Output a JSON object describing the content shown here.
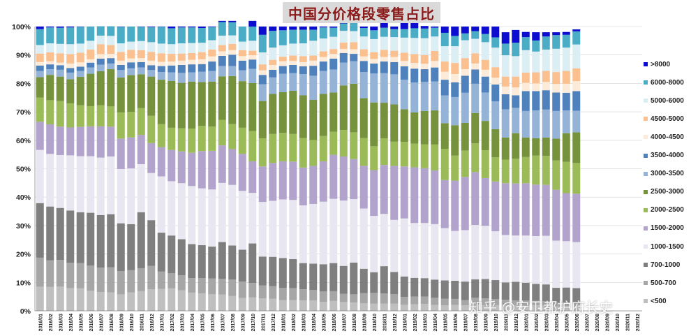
{
  "chart_data": {
    "type": "bar",
    "stacked": true,
    "percent": true,
    "title": "中国分价格段零售占比",
    "ylim": [
      0,
      100
    ],
    "yticks": [
      "0%",
      "10%",
      "20%",
      "30%",
      "40%",
      "50%",
      "60%",
      "70%",
      "80%",
      "90%",
      "100%"
    ],
    "categories": [
      "2016/01",
      "2016/02",
      "2016/03",
      "2016/04",
      "2016/05",
      "2016/06",
      "2016/07",
      "2016/08",
      "2016/09",
      "2016/10",
      "2016/11",
      "2016/12",
      "2017/01",
      "2017/02",
      "2017/03",
      "2017/04",
      "2017/05",
      "2017/06",
      "2017/07",
      "2017/08",
      "2017/09",
      "2017/10",
      "2017/11",
      "2017/12",
      "2018/01",
      "2018/02",
      "2018/03",
      "2018/04",
      "2018/05",
      "2018/06",
      "2018/07",
      "2018/08",
      "2018/09",
      "2018/10",
      "2018/11",
      "2018/12",
      "2019/01",
      "2019/02",
      "2019/03",
      "2019/04",
      "2019/05",
      "2019/06",
      "2019/07",
      "2019/08",
      "2019/09",
      "2019/10",
      "2019/11",
      "2019/12",
      "2020/01",
      "2020/02",
      "2020/03",
      "2020/04",
      "2020/05",
      "2020/06",
      "2020/07",
      "2020/08",
      "2020/09",
      "2020/10",
      "2020/11",
      "2020/12"
    ],
    "legend_position": "right",
    "series": [
      {
        "name": "<500",
        "color": "#bfbfbf",
        "values": [
          8.5,
          8.4,
          8.6,
          8.0,
          7.9,
          7.1,
          6.6,
          6.5,
          5.8,
          6.5,
          7.0,
          7.6,
          7.7,
          7.9,
          7.2,
          6.4,
          6.1,
          5.9,
          5.7,
          5.2,
          4.5,
          4.7,
          4.4,
          4.3,
          3.8,
          3.8,
          3.7,
          3.7,
          3.2,
          3.5,
          3.1,
          2.9,
          2.7,
          2.5,
          2.5,
          2.5,
          2.2,
          2.3,
          2.4,
          2.1,
          1.9,
          2.1,
          1.9,
          2.2,
          2.0,
          2.0,
          2.1,
          1.9,
          1.9,
          1.9,
          1.8,
          1.6,
          1.6,
          1.5,
          null,
          null,
          null,
          null,
          null,
          null
        ]
      },
      {
        "name": "500-700",
        "color": "#a6a6a6",
        "values": [
          10.2,
          9.4,
          9.3,
          8.9,
          8.9,
          8.8,
          8.6,
          8.8,
          8.2,
          7.8,
          8.0,
          8.2,
          6.1,
          5.3,
          5.3,
          5.1,
          5.4,
          5.5,
          5.6,
          5.8,
          5.8,
          5.1,
          4.5,
          4.4,
          4.3,
          4.2,
          3.9,
          3.6,
          3.6,
          3.4,
          2.9,
          2.9,
          3.5,
          3.8,
          3.6,
          3.4,
          2.7,
          2.7,
          2.6,
          2.5,
          2.4,
          2.1,
          1.9,
          2.4,
          2.4,
          2.1,
          1.8,
          1.8,
          1.7,
          1.6,
          1.6,
          1.3,
          1.3,
          1.3,
          null,
          null,
          null,
          null,
          null,
          null
        ]
      },
      {
        "name": "700-1000",
        "color": "#7f7f7f",
        "values": [
          19.2,
          18.9,
          18.3,
          18.4,
          17.9,
          18.6,
          18.5,
          18.7,
          16.8,
          16.2,
          19.7,
          16.1,
          13.7,
          13.3,
          12.7,
          12.0,
          11.6,
          11.2,
          12.9,
          12.0,
          11.2,
          13.9,
          10.2,
          10.3,
          10.5,
          10.2,
          9.2,
          9.3,
          9.6,
          9.9,
          9.8,
          11.2,
          8.6,
          7.3,
          9.6,
          7.8,
          7.2,
          6.6,
          6.5,
          6.4,
          6.4,
          6.4,
          6.5,
          6.5,
          6.8,
          6.7,
          6.1,
          6.5,
          6.3,
          6.0,
          5.9,
          5.2,
          5.3,
          5.2,
          null,
          null,
          null,
          null,
          null,
          null
        ]
      },
      {
        "name": "1000-1500",
        "color": "#e8e6f0",
        "values": [
          18.7,
          18.5,
          18.6,
          19.4,
          19.7,
          19.9,
          20.2,
          20.3,
          19.1,
          19.6,
          16.9,
          16.6,
          19.8,
          19.1,
          19.7,
          20.4,
          20.0,
          20.1,
          20.8,
          21.3,
          20.7,
          17.8,
          19.2,
          19.7,
          20.6,
          20.8,
          20.3,
          21.0,
          22.0,
          22.6,
          23.0,
          22.3,
          21.2,
          19.8,
          18.4,
          18.3,
          20.4,
          19.3,
          19.4,
          19.5,
          18.4,
          17.5,
          18.1,
          19.1,
          18.7,
          17.2,
          16.7,
          16.3,
          16.6,
          16.8,
          17.1,
          16.6,
          16.3,
          16.2,
          null,
          null,
          null,
          null,
          null,
          null
        ]
      },
      {
        "name": "1500-2000",
        "color": "#b2a3cc",
        "values": [
          9.9,
          10.4,
          10.0,
          9.8,
          10.3,
          10.5,
          11.0,
          10.5,
          10.7,
          10.9,
          10.3,
          10.5,
          10.3,
          11.0,
          11.2,
          11.7,
          13.1,
          13.6,
          13.2,
          12.6,
          13.0,
          11.1,
          12.5,
          13.3,
          13.4,
          13.5,
          13.3,
          13.4,
          14.2,
          15.5,
          15.5,
          14.1,
          15.0,
          16.1,
          17.2,
          19.0,
          18.3,
          19.6,
          19.3,
          18.9,
          16.9,
          17.7,
          18.7,
          18.6,
          16.8,
          17.5,
          18.2,
          18.3,
          18.4,
          18.1,
          17.9,
          17.9,
          16.9,
          17.0,
          null,
          null,
          null,
          null,
          null,
          null
        ]
      },
      {
        "name": "2000-2500",
        "color": "#9bbb59",
        "values": [
          8.5,
          8.5,
          9.0,
          8.5,
          7.6,
          7.1,
          7.4,
          7.1,
          9.2,
          9.0,
          9.4,
          9.6,
          8.1,
          7.8,
          8.1,
          8.5,
          8.9,
          8.5,
          9.0,
          8.8,
          9.2,
          10.6,
          9.9,
          10.2,
          10.0,
          9.7,
          10.4,
          9.1,
          8.9,
          8.1,
          9.3,
          9.4,
          9.8,
          8.4,
          9.4,
          8.5,
          8.6,
          8.3,
          8.4,
          9.1,
          11.0,
          8.8,
          9.3,
          10.1,
          9.8,
          8.5,
          8.3,
          8.7,
          9.2,
          10.2,
          10.2,
          10.3,
          11.0,
          10.8,
          null,
          null,
          null,
          null,
          null,
          null
        ]
      },
      {
        "name": "2500-3000",
        "color": "#76923c",
        "values": [
          7.2,
          8.9,
          8.6,
          8.5,
          10.0,
          11.4,
          12.0,
          13.1,
          12.3,
          12.9,
          11.9,
          13.8,
          15.6,
          16.5,
          16.0,
          16.5,
          15.4,
          15.8,
          15.3,
          16.9,
          16.4,
          16.9,
          13.1,
          14.1,
          14.3,
          15.2,
          15.0,
          14.1,
          14.8,
          13.8,
          15.7,
          17.1,
          14.0,
          15.4,
          12.5,
          13.1,
          11.5,
          11.0,
          11.7,
          12.0,
          9.0,
          10.7,
          9.7,
          10.7,
          10.3,
          9.9,
          7.8,
          9.0,
          6.9,
          6.1,
          6.5,
          7.7,
          10.1,
          10.8,
          null,
          null,
          null,
          null,
          null,
          null
        ]
      },
      {
        "name": "3000-3500",
        "color": "#95b3d7",
        "values": [
          2.2,
          2.0,
          2.4,
          2.3,
          2.1,
          2.2,
          2.3,
          2.0,
          2.6,
          2.4,
          2.4,
          2.3,
          2.7,
          3.0,
          3.5,
          3.3,
          3.6,
          3.8,
          3.6,
          3.5,
          3.8,
          5.0,
          5.9,
          5.8,
          6.5,
          6.2,
          7.5,
          8.5,
          8.1,
          8.1,
          8.0,
          7.9,
          9.2,
          10.2,
          10.4,
          10.6,
          10.4,
          10.5,
          10.2,
          10.2,
          9.8,
          9.9,
          10.6,
          10.3,
          10.0,
          9.8,
          9.9,
          8.9,
          9.3,
          9.8,
          9.8,
          9.7,
          8.0,
          7.6,
          null,
          null,
          null,
          null,
          null,
          null
        ]
      },
      {
        "name": "3500-4000",
        "color": "#4f81bd",
        "values": [
          1.9,
          1.7,
          1.6,
          1.6,
          1.5,
          1.7,
          2.1,
          1.9,
          1.8,
          2.1,
          1.9,
          1.7,
          2.1,
          2.4,
          2.8,
          2.8,
          2.7,
          3.3,
          3.6,
          4.0,
          3.4,
          3.3,
          3.3,
          2.7,
          2.7,
          2.9,
          2.7,
          3.5,
          3.3,
          3.8,
          3.4,
          2.6,
          3.9,
          3.5,
          4.1,
          4.3,
          4.7,
          4.9,
          4.5,
          4.9,
          5.5,
          5.2,
          6.0,
          5.0,
          5.6,
          5.9,
          5.3,
          4.4,
          7.0,
          6.8,
          6.8,
          6.5,
          6.2,
          6.9,
          null,
          null,
          null,
          null,
          null,
          null
        ]
      },
      {
        "name": "4000-4500",
        "color": "#fcebd8",
        "values": [
          1.2,
          1.1,
          0.9,
          1.6,
          1.5,
          1.2,
          1.6,
          1.5,
          1.5,
          1.4,
          1.4,
          1.6,
          1.5,
          1.4,
          1.5,
          1.6,
          1.7,
          1.8,
          1.6,
          1.6,
          1.6,
          1.5,
          1.6,
          1.7,
          1.7,
          1.4,
          1.5,
          1.8,
          1.6,
          1.7,
          1.4,
          1.6,
          1.6,
          1.6,
          1.6,
          1.8,
          1.9,
          2.0,
          1.9,
          2.3,
          2.8,
          2.9,
          2.3,
          2.1,
          2.4,
          2.4,
          2.7,
          2.8,
          2.9,
          2.7,
          2.9,
          3.0,
          3.2,
          3.5,
          null,
          null,
          null,
          null,
          null,
          null
        ]
      },
      {
        "name": "4500-5000",
        "color": "#fac090",
        "values": [
          3.0,
          3.1,
          3.3,
          3.3,
          3.4,
          3.4,
          3.5,
          3.1,
          3.1,
          3.0,
          2.8,
          3.1,
          3.0,
          2.7,
          2.5,
          2.4,
          2.5,
          2.4,
          2.2,
          2.2,
          2.1,
          1.6,
          2.1,
          1.8,
          1.6,
          1.9,
          2.1,
          1.8,
          2.0,
          1.7,
          2.3,
          2.5,
          2.5,
          2.4,
          2.5,
          2.2,
          2.9,
          3.1,
          3.1,
          3.5,
          3.6,
          3.9,
          3.9,
          3.6,
          3.5,
          3.7,
          3.5,
          3.8,
          3.6,
          3.9,
          3.9,
          4.2,
          4.5,
          4.5,
          null,
          null,
          null,
          null,
          null,
          null
        ]
      },
      {
        "name": "5000-6000",
        "color": "#dbeef4",
        "values": [
          3.0,
          3.2,
          3.3,
          3.5,
          3.2,
          3.1,
          3.0,
          3.2,
          3.0,
          2.9,
          3.2,
          3.4,
          3.4,
          3.4,
          3.6,
          3.5,
          3.3,
          3.3,
          3.3,
          3.0,
          3.0,
          3.5,
          4.2,
          4.3,
          4.0,
          4.2,
          4.5,
          5.2,
          4.5,
          4.3,
          4.1,
          3.9,
          4.5,
          4.6,
          4.6,
          4.8,
          5.3,
          5.7,
          5.9,
          5.1,
          5.4,
          5.9,
          6.3,
          5.1,
          6.2,
          6.9,
          7.5,
          7.2,
          7.9,
          7.3,
          7.5,
          8.2,
          8.2,
          8.4,
          null,
          null,
          null,
          null,
          null,
          null
        ]
      },
      {
        "name": "6000-8000",
        "color": "#4bacc6",
        "values": [
          5.6,
          5.6,
          5.7,
          5.9,
          5.9,
          5.0,
          3.3,
          3.4,
          5.8,
          5.3,
          5.0,
          5.3,
          5.9,
          5.6,
          5.6,
          5.5,
          5.2,
          4.6,
          4.8,
          4.6,
          5.3,
          5.0,
          6.2,
          5.9,
          5.3,
          4.9,
          4.8,
          3.9,
          3.9,
          3.2,
          2.6,
          3.1,
          3.0,
          3.1,
          3.2,
          2.8,
          3.0,
          3.4,
          3.4,
          3.1,
          4.7,
          3.6,
          2.4,
          2.7,
          2.9,
          3.6,
          4.1,
          4.7,
          4.6,
          3.9,
          4.6,
          4.8,
          4.5,
          4.6,
          null,
          null,
          null,
          null,
          null,
          null
        ]
      },
      {
        "name": ">8000",
        "color": "#0d0dd0",
        "values": [
          0.9,
          0.3,
          0.4,
          0.3,
          0.1,
          0.0,
          0.0,
          0.0,
          0.1,
          0.0,
          0.1,
          0.2,
          0.1,
          0.6,
          0.3,
          0.3,
          0.5,
          0.2,
          0.4,
          0.5,
          0.0,
          2.0,
          2.9,
          1.5,
          1.3,
          1.1,
          1.1,
          1.1,
          0.3,
          0.4,
          0.9,
          0.5,
          0.5,
          1.3,
          4.4,
          0.9,
          2.8,
          2.6,
          0.9,
          0.4,
          2.2,
          3.3,
          2.4,
          1.6,
          2.6,
          3.8,
          4.0,
          4.5,
          1.8,
          2.9,
          1.5,
          1.0,
          1.0,
          0.7,
          null,
          null,
          null,
          null,
          null,
          null
        ]
      }
    ]
  },
  "watermark": {
    "text": "知乎 @安卫都护府长史"
  }
}
